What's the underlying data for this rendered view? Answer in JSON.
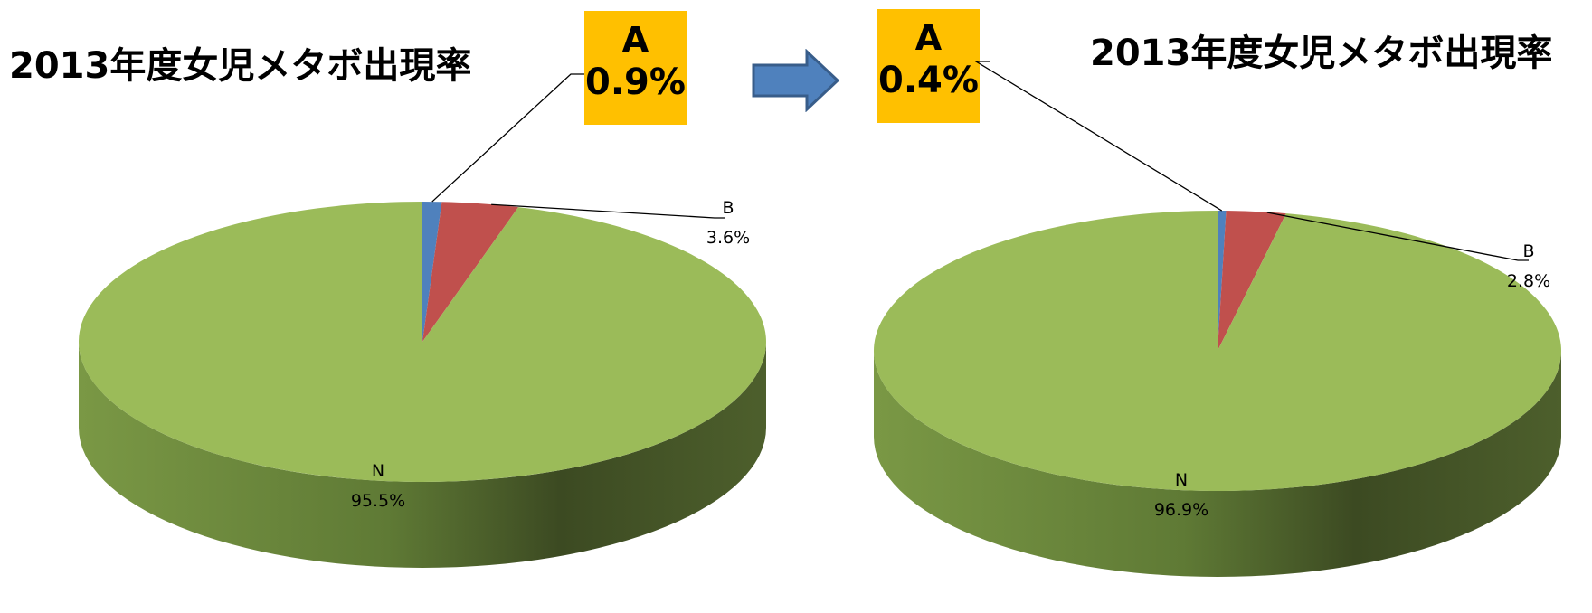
{
  "chart_data": [
    {
      "type": "pie",
      "title": "2013年度女児メタボ出現率",
      "slices": [
        {
          "label": "A",
          "value": 0.9,
          "display": "0.9%",
          "color": "#4f81bd"
        },
        {
          "label": "B",
          "value": 3.6,
          "display": "3.6%",
          "color": "#c0504d"
        },
        {
          "label": "N",
          "value": 95.5,
          "display": "95.5%",
          "color": "#9bbb59"
        }
      ]
    },
    {
      "type": "pie",
      "title": "2013年度女児メタボ出現率",
      "slices": [
        {
          "label": "A",
          "value": 0.4,
          "display": "0.4%",
          "color": "#4f81bd"
        },
        {
          "label": "B",
          "value": 2.8,
          "display": "2.8%",
          "color": "#c0504d"
        },
        {
          "label": "N",
          "value": 96.9,
          "display": "96.9%",
          "color": "#9bbb59"
        }
      ]
    }
  ],
  "colors": {
    "callout_bg": "#ffc000",
    "arrow_fill": "#4f81bd",
    "arrow_stroke": "#385d8a",
    "pie_side_dark": "#3c4a22",
    "pie_side_light": "#7a9845"
  }
}
